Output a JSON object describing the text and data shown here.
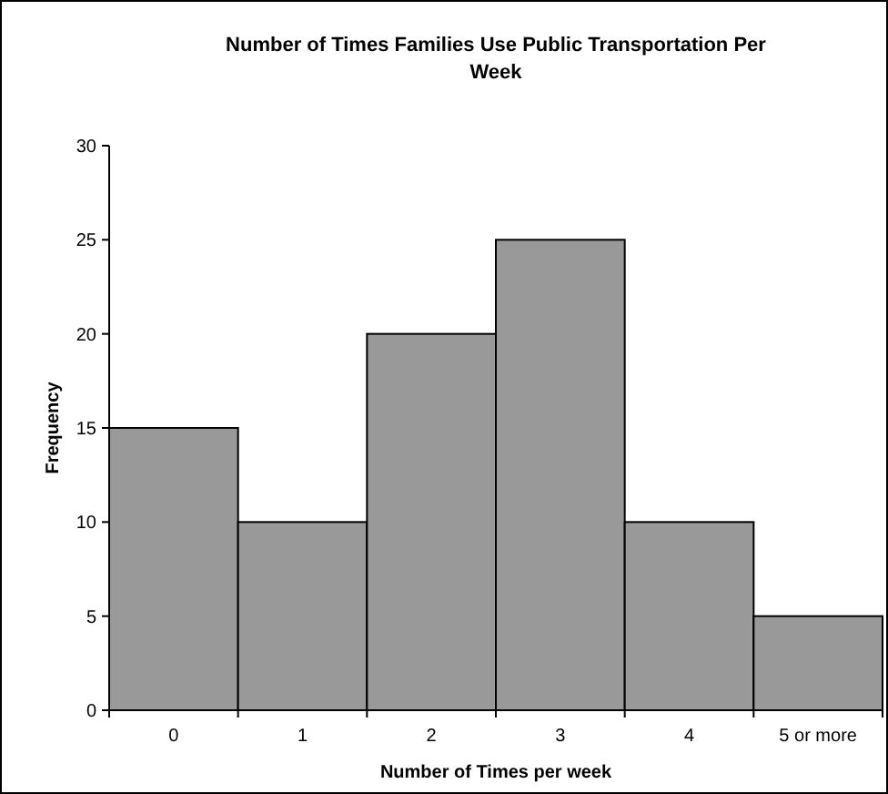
{
  "chart_data": {
    "type": "bar",
    "title": "Number of Times Families Use Public Transportation Per Week",
    "xlabel": "Number of Times per week",
    "ylabel": "Frequency",
    "categories": [
      "0",
      "1",
      "2",
      "3",
      "4",
      "5 or more"
    ],
    "values": [
      15,
      10,
      20,
      25,
      10,
      5
    ],
    "color": "#999999",
    "ylim": [
      0,
      30
    ],
    "yticks": [
      0,
      5,
      10,
      15,
      20,
      25,
      30
    ],
    "grid": false
  }
}
